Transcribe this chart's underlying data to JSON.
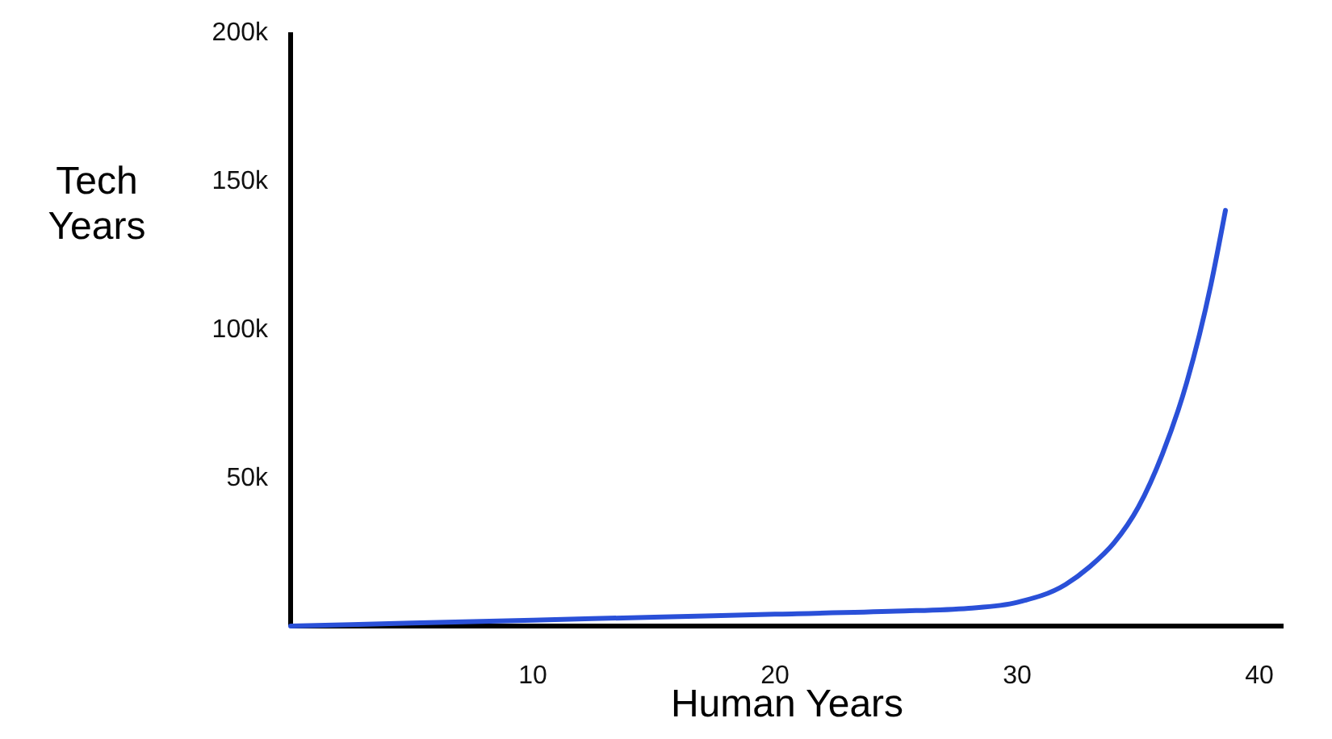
{
  "chart_data": {
    "type": "line",
    "xlabel": "Human Years",
    "ylabel": "Tech Years",
    "series": [
      {
        "color": "#2a50d8",
        "x": [
          0,
          5,
          10,
          15,
          20,
          25,
          28,
          30,
          32,
          33,
          34,
          35,
          36,
          37,
          38,
          38.6
        ],
        "values": [
          0,
          1000,
          2000,
          3000,
          4000,
          5000,
          6000,
          8000,
          14000,
          20000,
          28000,
          40000,
          58000,
          82000,
          115000,
          140000
        ]
      }
    ],
    "xlim": [
      0,
      41
    ],
    "xticks": [
      10,
      20,
      30,
      40
    ],
    "ylim": [
      0,
      200000
    ],
    "yticks": [
      {
        "value": 50000,
        "label": "50k"
      },
      {
        "value": 100000,
        "label": "100k"
      },
      {
        "value": 150000,
        "label": "150k"
      },
      {
        "value": 200000,
        "label": "200k"
      }
    ],
    "grid": false,
    "marker": "none",
    "line_style": "solid"
  }
}
